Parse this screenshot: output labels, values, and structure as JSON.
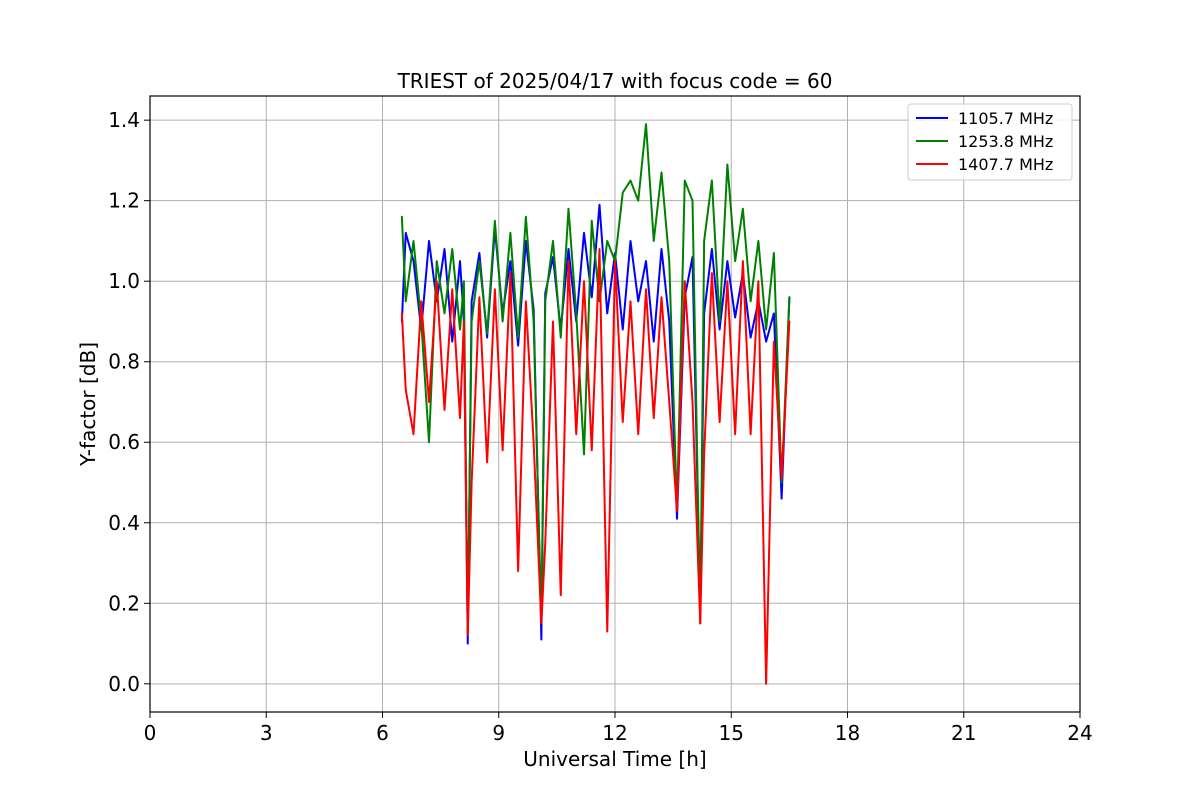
{
  "chart_data": {
    "type": "line",
    "title": "TRIEST of 2025/04/17 with focus code = 60",
    "xlabel": "Universal Time [h]",
    "ylabel": "Y-factor [dB]",
    "xlim": [
      0,
      24
    ],
    "ylim": [
      -0.07,
      1.46
    ],
    "xticks": [
      0,
      3,
      6,
      9,
      12,
      15,
      18,
      21,
      24
    ],
    "yticks": [
      0.0,
      0.2,
      0.4,
      0.6,
      0.8,
      1.0,
      1.2,
      1.4
    ],
    "xtick_labels": [
      "0",
      "3",
      "6",
      "9",
      "12",
      "15",
      "18",
      "21",
      "24"
    ],
    "ytick_labels": [
      "0.0",
      "0.2",
      "0.4",
      "0.6",
      "0.8",
      "1.0",
      "1.2",
      "1.4"
    ],
    "grid": true,
    "legend_position": "top-right",
    "series": [
      {
        "name": "1105.7 MHz",
        "color": "#0000ff",
        "x": [
          6.5,
          6.6,
          6.8,
          7.0,
          7.2,
          7.4,
          7.6,
          7.8,
          8.0,
          8.1,
          8.2,
          8.3,
          8.5,
          8.7,
          8.9,
          9.1,
          9.3,
          9.5,
          9.7,
          9.9,
          10.1,
          10.2,
          10.4,
          10.6,
          10.8,
          11.0,
          11.2,
          11.4,
          11.6,
          11.8,
          12.0,
          12.2,
          12.4,
          12.6,
          12.8,
          13.0,
          13.2,
          13.4,
          13.6,
          13.8,
          14.0,
          14.2,
          14.3,
          14.5,
          14.7,
          14.9,
          15.1,
          15.3,
          15.5,
          15.7,
          15.9,
          16.1,
          16.3,
          16.5
        ],
        "y": [
          0.9,
          1.12,
          1.05,
          0.88,
          1.1,
          0.95,
          1.08,
          0.85,
          1.05,
          0.9,
          0.1,
          0.95,
          1.07,
          0.86,
          1.13,
          0.92,
          1.05,
          0.84,
          1.1,
          0.93,
          0.11,
          0.97,
          1.06,
          0.88,
          1.08,
          0.9,
          1.12,
          0.96,
          1.19,
          0.92,
          1.07,
          0.88,
          1.1,
          0.95,
          1.05,
          0.85,
          1.08,
          0.9,
          0.41,
          0.96,
          1.06,
          0.17,
          0.92,
          1.08,
          0.88,
          1.05,
          0.91,
          1.02,
          0.86,
          0.95,
          0.85,
          0.92,
          0.46,
          0.96
        ]
      },
      {
        "name": "1253.8 MHz",
        "color": "#008000",
        "x": [
          6.5,
          6.6,
          6.8,
          7.0,
          7.2,
          7.4,
          7.6,
          7.8,
          8.0,
          8.1,
          8.2,
          8.3,
          8.5,
          8.7,
          8.9,
          9.1,
          9.3,
          9.5,
          9.7,
          9.9,
          10.1,
          10.2,
          10.4,
          10.6,
          10.8,
          11.0,
          11.2,
          11.4,
          11.6,
          11.8,
          12.0,
          12.2,
          12.4,
          12.6,
          12.8,
          13.0,
          13.2,
          13.4,
          13.6,
          13.8,
          14.0,
          14.2,
          14.3,
          14.5,
          14.7,
          14.9,
          15.1,
          15.3,
          15.5,
          15.7,
          15.9,
          16.1,
          16.3,
          16.5
        ],
        "y": [
          1.16,
          0.95,
          1.1,
          0.9,
          0.6,
          1.05,
          0.92,
          1.08,
          0.88,
          1.0,
          0.13,
          0.9,
          1.05,
          0.87,
          1.15,
          0.9,
          1.12,
          0.86,
          1.16,
          0.9,
          0.15,
          0.95,
          1.1,
          0.86,
          1.18,
          0.92,
          0.57,
          1.15,
          0.95,
          1.1,
          1.05,
          1.22,
          1.25,
          1.2,
          1.39,
          1.1,
          1.27,
          1.05,
          0.43,
          1.25,
          1.2,
          0.15,
          1.1,
          1.25,
          0.9,
          1.29,
          1.05,
          1.18,
          0.95,
          1.1,
          0.88,
          1.07,
          0.5,
          0.96
        ]
      },
      {
        "name": "1407.7 MHz",
        "color": "#ff0000",
        "x": [
          6.5,
          6.6,
          6.8,
          7.0,
          7.2,
          7.4,
          7.6,
          7.8,
          8.0,
          8.1,
          8.2,
          8.3,
          8.5,
          8.7,
          8.9,
          9.1,
          9.3,
          9.5,
          9.7,
          9.9,
          10.1,
          10.2,
          10.4,
          10.6,
          10.8,
          11.0,
          11.2,
          11.4,
          11.6,
          11.8,
          12.0,
          12.2,
          12.4,
          12.6,
          12.8,
          13.0,
          13.2,
          13.4,
          13.6,
          13.8,
          14.0,
          14.2,
          14.3,
          14.5,
          14.7,
          14.9,
          15.1,
          15.3,
          15.5,
          15.7,
          15.9,
          16.1,
          16.3,
          16.5
        ],
        "y": [
          0.92,
          0.73,
          0.62,
          0.95,
          0.7,
          1.0,
          0.68,
          0.98,
          0.66,
          0.9,
          0.12,
          0.5,
          0.96,
          0.55,
          0.98,
          0.58,
          1.02,
          0.28,
          0.95,
          0.6,
          0.15,
          0.35,
          0.9,
          0.22,
          1.05,
          0.62,
          1.0,
          0.58,
          1.08,
          0.13,
          1.05,
          0.65,
          0.95,
          0.62,
          0.98,
          0.66,
          0.96,
          0.7,
          0.43,
          1.0,
          0.7,
          0.15,
          0.57,
          1.02,
          0.65,
          1.0,
          0.62,
          1.05,
          0.62,
          1.0,
          0.0,
          0.85,
          0.51,
          0.9
        ]
      }
    ]
  }
}
